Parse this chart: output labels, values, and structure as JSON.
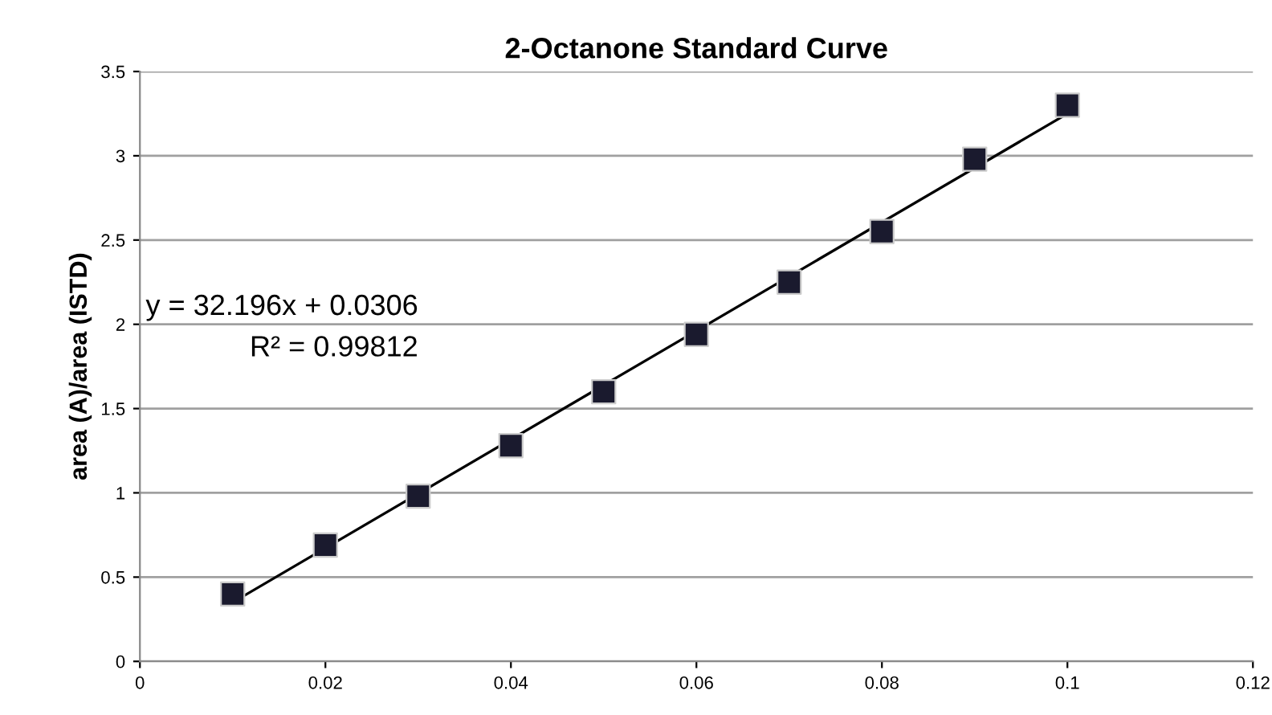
{
  "chart_data": {
    "type": "scatter",
    "title": "2-Octanone Standard Curve",
    "ylabel": "area (A)/area (ISTD)",
    "series": [
      {
        "color": "#1a1a2e",
        "marker": "square",
        "x": [
          0.01,
          0.02,
          0.03,
          0.04,
          0.05,
          0.06,
          0.07,
          0.08,
          0.09,
          0.1
        ],
        "values": [
          0.4,
          0.69,
          0.98,
          1.28,
          1.6,
          1.94,
          2.25,
          2.55,
          2.98,
          3.3
        ]
      },
      {
        "type": "line",
        "color": "#000000",
        "marker": "none",
        "line_style": "solid",
        "x": [
          0.01,
          0.1
        ],
        "values": [
          0.35,
          3.25
        ]
      }
    ],
    "annotations": [
      "y = 32.196x + 0.0306",
      "R² = 0.99812"
    ],
    "xlim": [
      0,
      0.12
    ],
    "xticks": [
      0,
      0.02,
      0.04,
      0.06,
      0.08,
      0.1,
      0.12
    ],
    "ylim": [
      0,
      3.5
    ],
    "yticks": [
      0,
      0.5,
      1,
      1.5,
      2,
      2.5,
      3,
      3.5
    ],
    "grid": "y",
    "legend": false
  }
}
